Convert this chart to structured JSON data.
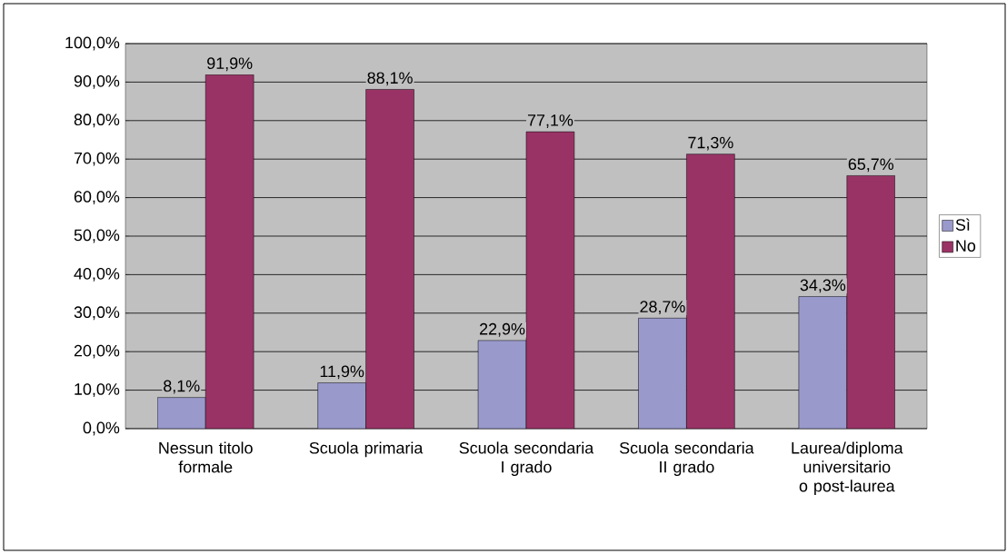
{
  "chart_data": {
    "type": "bar",
    "categories": [
      "Nessun titolo formale",
      "Scuola primaria",
      "Scuola secondaria I grado",
      "Scuola secondaria II grado",
      "Laurea/diploma universitario o post-laurea"
    ],
    "series": [
      {
        "name": "Sì",
        "color": "#9999cc",
        "values": [
          8.1,
          11.9,
          22.9,
          28.7,
          34.3
        ],
        "value_labels": [
          "8,1%",
          "11,9%",
          "22,9%",
          "28,7%",
          "34,3%"
        ]
      },
      {
        "name": "No",
        "color": "#993366",
        "values": [
          91.9,
          88.1,
          77.1,
          71.3,
          65.7
        ],
        "value_labels": [
          "91,9%",
          "88,1%",
          "77,1%",
          "71,3%",
          "65,7%"
        ]
      }
    ],
    "ylim": [
      0,
      100
    ],
    "yticks": [
      {
        "value": 0,
        "label": "0,0%"
      },
      {
        "value": 10,
        "label": "10,0%"
      },
      {
        "value": 20,
        "label": "20,0%"
      },
      {
        "value": 30,
        "label": "30,0%"
      },
      {
        "value": 40,
        "label": "40,0%"
      },
      {
        "value": 50,
        "label": "50,0%"
      },
      {
        "value": 60,
        "label": "60,0%"
      },
      {
        "value": 70,
        "label": "70,0%"
      },
      {
        "value": 80,
        "label": "80,0%"
      },
      {
        "value": 90,
        "label": "90,0%"
      },
      {
        "value": 100,
        "label": "100,0%"
      }
    ],
    "grid": "y",
    "legend": "right"
  }
}
